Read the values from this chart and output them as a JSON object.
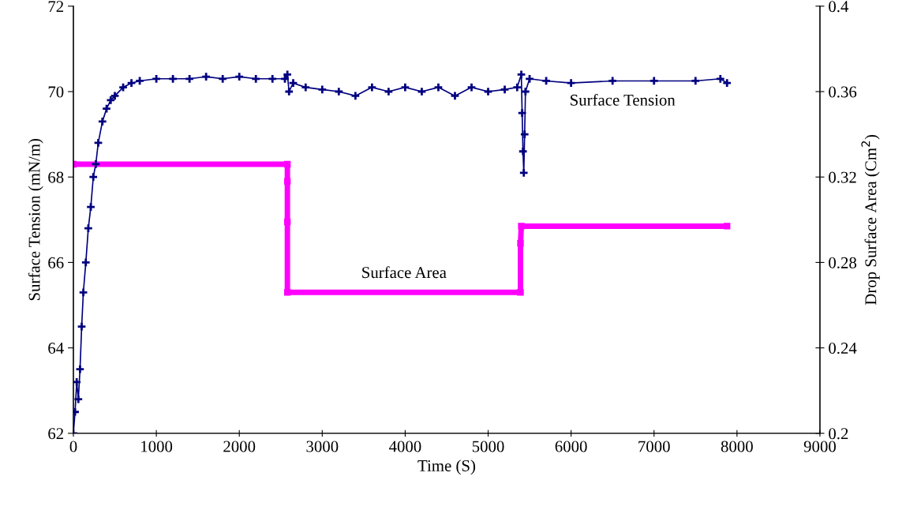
{
  "chart_data": {
    "type": "line",
    "xlabel": "Time (S)",
    "ylabel": "Surface Tension (mN/m)",
    "y2label": "Drop Surface Area (Cm$^{2}$)",
    "xlim": [
      0,
      9000
    ],
    "xticks": [
      0,
      1000,
      2000,
      3000,
      4000,
      5000,
      6000,
      7000,
      8000,
      9000
    ],
    "ylim": [
      62,
      72
    ],
    "yticks": [
      62,
      64,
      66,
      68,
      70,
      72
    ],
    "y2lim": [
      0.2,
      0.4
    ],
    "y2ticks": [
      0.2,
      0.24,
      0.28,
      0.32,
      0.36,
      0.4
    ],
    "grid": false,
    "legend": false,
    "series": [
      {
        "name": "Surface Tension",
        "color": "#000080",
        "marker": "cross",
        "line_style": "solid",
        "x": [
          0,
          20,
          40,
          60,
          80,
          100,
          120,
          150,
          180,
          210,
          240,
          270,
          300,
          350,
          400,
          450,
          500,
          600,
          700,
          800,
          1000,
          1200,
          1400,
          1600,
          1800,
          2000,
          2200,
          2400,
          2550,
          2580,
          2600,
          2650,
          2800,
          3000,
          3200,
          3400,
          3600,
          3800,
          4000,
          4200,
          4400,
          4600,
          4800,
          5000,
          5200,
          5350,
          5400,
          5410,
          5420,
          5430,
          5440,
          5450,
          5500,
          5700,
          6000,
          6500,
          7000,
          7500,
          7800,
          7880
        ],
        "values": [
          62.0,
          62.5,
          63.2,
          62.8,
          63.5,
          64.5,
          65.3,
          66.0,
          66.8,
          67.3,
          68.0,
          68.3,
          68.8,
          69.3,
          69.6,
          69.8,
          69.9,
          70.1,
          70.2,
          70.25,
          70.3,
          70.3,
          70.3,
          70.35,
          70.3,
          70.35,
          70.3,
          70.3,
          70.3,
          70.4,
          70.0,
          70.2,
          70.1,
          70.05,
          70.0,
          69.9,
          70.1,
          70.0,
          70.1,
          70.0,
          70.1,
          69.9,
          70.1,
          70.0,
          70.05,
          70.1,
          70.4,
          69.5,
          68.6,
          68.1,
          69.0,
          70.0,
          70.3,
          70.25,
          70.2,
          70.25,
          70.25,
          70.25,
          70.3,
          70.2
        ]
      },
      {
        "name": "Surface Area",
        "color": "#ff00ff",
        "marker": "square",
        "line_style": "solid",
        "axis": "y2",
        "x": [
          0,
          2580,
          2580,
          2580,
          2580,
          5390,
          5390,
          5400,
          7880
        ],
        "values": [
          0.326,
          0.326,
          0.318,
          0.299,
          0.266,
          0.266,
          0.289,
          0.297,
          0.297
        ]
      }
    ]
  }
}
